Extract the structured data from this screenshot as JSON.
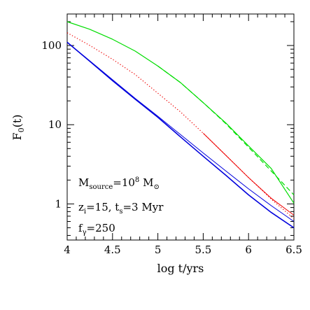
{
  "chart_data": {
    "type": "line",
    "xlabel": "log t/yrs",
    "ylabel": "F0(t)",
    "ylabel_parts": {
      "base": "F",
      "sub": "0",
      "tail": "(t)"
    },
    "xlim": [
      4,
      6.5
    ],
    "ylim": [
      0.35,
      250
    ],
    "yscale": "log",
    "grid": false,
    "x_ticks": [
      4,
      4.5,
      5,
      5.5,
      6,
      6.5
    ],
    "x_tick_labels": [
      "4",
      "4.5",
      "5",
      "5.5",
      "6",
      "6.5"
    ],
    "y_ticks": [
      1,
      10,
      100
    ],
    "y_tick_labels": [
      "1",
      "10",
      "100"
    ],
    "annotations": [
      {
        "id": "mass",
        "parts": [
          [
            "M",
            ""
          ],
          [
            "source",
            "sub"
          ],
          [
            "=10",
            ""
          ],
          [
            "8",
            "sup"
          ],
          [
            " M",
            ""
          ],
          [
            "⊙",
            "sub"
          ]
        ]
      },
      {
        "id": "redshift",
        "parts": [
          [
            "z",
            ""
          ],
          [
            "i",
            "sub"
          ],
          [
            "=15, t",
            ""
          ],
          [
            "s",
            "sub"
          ],
          [
            "=3 Myr",
            ""
          ]
        ]
      },
      {
        "id": "fgamma",
        "parts": [
          [
            "f",
            ""
          ],
          [
            "γ",
            "sub"
          ],
          [
            "=250",
            ""
          ]
        ]
      }
    ],
    "series": [
      {
        "color": "#00dd00",
        "style": "solid",
        "width": 1.2,
        "x": [
          4.0,
          4.25,
          4.5,
          4.75,
          5.0,
          5.25,
          5.5,
          5.75,
          6.0,
          6.25,
          6.5
        ],
        "y": [
          200,
          160,
          120,
          85,
          55,
          34,
          19,
          10.5,
          5.4,
          2.8,
          1.02
        ]
      },
      {
        "color": "#00dd00",
        "style": "dashed",
        "width": 1.2,
        "x": [
          5.0,
          5.25,
          5.5,
          5.75,
          6.0,
          6.25,
          6.5
        ],
        "y": [
          55,
          34,
          19,
          10.3,
          5.2,
          2.6,
          1.3
        ]
      },
      {
        "color": "#ee0000",
        "style": "dotted",
        "width": 1.2,
        "x": [
          4.0,
          4.25,
          4.5,
          4.75,
          5.0,
          5.25,
          5.5,
          5.75,
          6.0,
          6.25,
          6.5
        ],
        "y": [
          145,
          100,
          67,
          43,
          25,
          14.5,
          7.8,
          4.1,
          2.15,
          1.15,
          0.65
        ]
      },
      {
        "color": "#ee0000",
        "style": "solid",
        "width": 1.0,
        "x": [
          5.5,
          5.75,
          6.0,
          6.25,
          6.5
        ],
        "y": [
          7.8,
          4.1,
          2.15,
          1.18,
          0.72
        ]
      },
      {
        "color": "#0000dd",
        "style": "solid",
        "width": 1.6,
        "x": [
          4.0,
          4.25,
          4.5,
          4.75,
          5.0,
          5.25,
          5.5,
          5.75,
          6.0,
          6.25,
          6.5
        ],
        "y": [
          110,
          63,
          36,
          21,
          12.4,
          7.0,
          4.0,
          2.3,
          1.3,
          0.78,
          0.5
        ]
      },
      {
        "color": "#0000dd",
        "style": "solid",
        "width": 1.0,
        "x": [
          4.0,
          4.25,
          4.5,
          4.75,
          5.0,
          5.25,
          5.5,
          5.75,
          6.0,
          6.25,
          6.5
        ],
        "y": [
          110,
          64,
          37,
          21.5,
          12.8,
          7.5,
          4.4,
          2.6,
          1.55,
          0.95,
          0.6
        ]
      }
    ]
  }
}
